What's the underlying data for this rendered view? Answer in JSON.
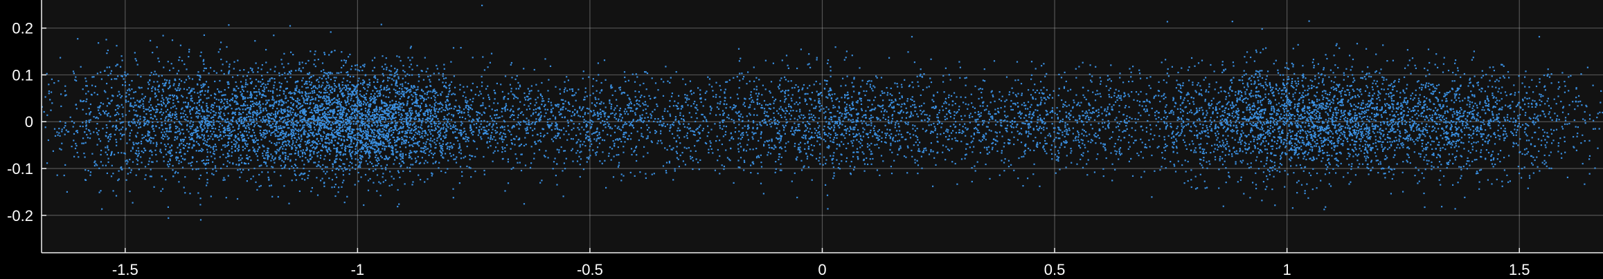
{
  "chart_data": {
    "type": "scatter",
    "title": "",
    "xlabel": "",
    "ylabel": "",
    "xlim": [
      -1.68,
      1.68
    ],
    "ylim": [
      -0.28,
      0.26
    ],
    "xticks": [
      -1.5,
      -1,
      -0.5,
      0,
      0.5,
      1,
      1.5
    ],
    "xtick_labels": [
      "-1.5",
      "-1",
      "-0.5",
      "0",
      "0.5",
      "1",
      "1.5"
    ],
    "yticks": [
      0.2,
      0.1,
      0,
      -0.1,
      -0.2
    ],
    "ytick_labels": [
      "0.2",
      "0.1",
      "0",
      "-0.1",
      "-0.2"
    ],
    "grid": true,
    "legend": "none",
    "colors": {
      "background": "#000000",
      "plot_area": "#121212",
      "points": "#3a8fe0",
      "grid": "#ffffff",
      "axis": "#f0f0f0",
      "text": "#ffffff"
    },
    "series": [
      {
        "point_count": 12000,
        "clusters": [
          {
            "x_center": -1.35,
            "x_spread": 0.17,
            "y_spread": 0.062,
            "share": 0.16
          },
          {
            "x_center": -1.0,
            "x_spread": 0.14,
            "y_spread": 0.058,
            "share": 0.26
          },
          {
            "x_center": -0.5,
            "x_spread": 0.17,
            "y_spread": 0.048,
            "share": 0.09
          },
          {
            "x_center": 0.0,
            "x_spread": 0.16,
            "y_spread": 0.055,
            "share": 0.1
          },
          {
            "x_center": 0.5,
            "x_spread": 0.2,
            "y_spread": 0.05,
            "share": 0.1
          },
          {
            "x_center": 1.0,
            "x_spread": 0.13,
            "y_spread": 0.06,
            "share": 0.16
          },
          {
            "x_center": 1.35,
            "x_spread": 0.16,
            "y_spread": 0.055,
            "share": 0.13
          }
        ]
      }
    ]
  }
}
